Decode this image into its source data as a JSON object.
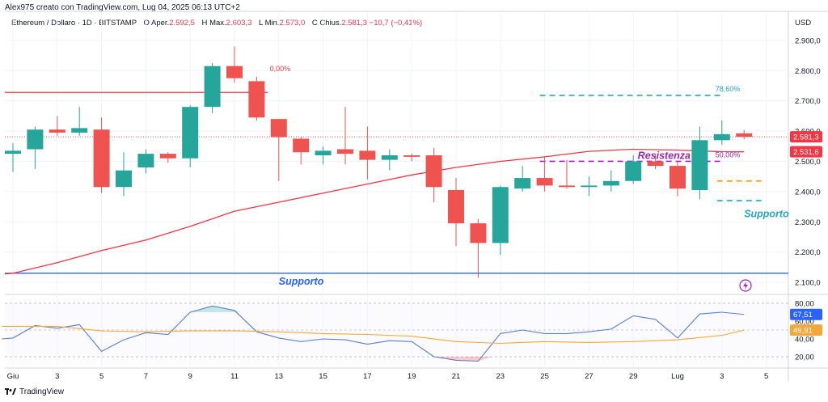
{
  "header": {
    "author_line": "Alex975 creato con TradingView.com, Lug 04, 2025 06:13 UTC+2"
  },
  "legend": {
    "symbol": "Ethereum / Dollaro · 1D · BITSTAMP",
    "open_label": "O",
    "open_text": "Aper.",
    "open_value": "2.592,5",
    "high_label": "H",
    "high_text": "Max.",
    "high_value": "2.603,3",
    "low_label": "L",
    "low_text": "Min.",
    "low_value": "2.573,0",
    "close_label": "C",
    "close_text": "Chius.",
    "close_value": "2.581,3",
    "change_value": "−10,7 (−0,41%)"
  },
  "footer": {
    "brand": "TradingView"
  },
  "chart_data": [
    {
      "type": "candlestick",
      "currency_label": "USD",
      "ylim": [
        2060,
        2980
      ],
      "yticks": [
        {
          "value": 2100,
          "label": "2.100,0"
        },
        {
          "value": 2200,
          "label": "2.200,0"
        },
        {
          "value": 2300,
          "label": "2.300,0"
        },
        {
          "value": 2400,
          "label": "2.400,0"
        },
        {
          "value": 2500,
          "label": "2.500,0"
        },
        {
          "value": 2600,
          "label": "2.600,0"
        },
        {
          "value": 2700,
          "label": "2.700,0"
        },
        {
          "value": 2800,
          "label": "2.800,0"
        },
        {
          "value": 2900,
          "label": "2.900,0"
        }
      ],
      "xticks": [
        {
          "day": 1,
          "label": "Giu"
        },
        {
          "day": 3,
          "label": "3"
        },
        {
          "day": 5,
          "label": "5"
        },
        {
          "day": 7,
          "label": "7"
        },
        {
          "day": 9,
          "label": "9"
        },
        {
          "day": 11,
          "label": "11"
        },
        {
          "day": 13,
          "label": "13"
        },
        {
          "day": 15,
          "label": "15"
        },
        {
          "day": 17,
          "label": "17"
        },
        {
          "day": 19,
          "label": "19"
        },
        {
          "day": 21,
          "label": "21"
        },
        {
          "day": 23,
          "label": "23"
        },
        {
          "day": 25,
          "label": "25"
        },
        {
          "day": 27,
          "label": "27"
        },
        {
          "day": 29,
          "label": "29"
        },
        {
          "day": 31,
          "label": "Lug"
        },
        {
          "day": 33,
          "label": "3"
        },
        {
          "day": 35,
          "label": "5"
        }
      ],
      "candles": [
        {
          "day": 1,
          "open": 2525,
          "high": 2560,
          "low": 2465,
          "close": 2535
        },
        {
          "day": 2,
          "open": 2540,
          "high": 2615,
          "low": 2475,
          "close": 2605
        },
        {
          "day": 3,
          "open": 2605,
          "high": 2650,
          "low": 2585,
          "close": 2595
        },
        {
          "day": 4,
          "open": 2595,
          "high": 2680,
          "low": 2585,
          "close": 2610
        },
        {
          "day": 5,
          "open": 2605,
          "high": 2645,
          "low": 2395,
          "close": 2415
        },
        {
          "day": 6,
          "open": 2415,
          "high": 2530,
          "low": 2385,
          "close": 2470
        },
        {
          "day": 7,
          "open": 2480,
          "high": 2540,
          "low": 2460,
          "close": 2525
        },
        {
          "day": 8,
          "open": 2525,
          "high": 2530,
          "low": 2495,
          "close": 2510
        },
        {
          "day": 9,
          "open": 2510,
          "high": 2685,
          "low": 2480,
          "close": 2680
        },
        {
          "day": 10,
          "open": 2680,
          "high": 2825,
          "low": 2660,
          "close": 2815
        },
        {
          "day": 11,
          "open": 2815,
          "high": 2880,
          "low": 2760,
          "close": 2775
        },
        {
          "day": 12,
          "open": 2765,
          "high": 2780,
          "low": 2635,
          "close": 2645
        },
        {
          "day": 13,
          "open": 2640,
          "high": 2640,
          "low": 2435,
          "close": 2580
        },
        {
          "day": 14,
          "open": 2575,
          "high": 2580,
          "low": 2490,
          "close": 2530
        },
        {
          "day": 15,
          "open": 2520,
          "high": 2550,
          "low": 2490,
          "close": 2535
        },
        {
          "day": 16,
          "open": 2540,
          "high": 2680,
          "low": 2490,
          "close": 2525
        },
        {
          "day": 17,
          "open": 2535,
          "high": 2615,
          "low": 2440,
          "close": 2505
        },
        {
          "day": 18,
          "open": 2505,
          "high": 2540,
          "low": 2470,
          "close": 2520
        },
        {
          "day": 19,
          "open": 2520,
          "high": 2525,
          "low": 2500,
          "close": 2515
        },
        {
          "day": 20,
          "open": 2520,
          "high": 2545,
          "low": 2365,
          "close": 2415
        },
        {
          "day": 21,
          "open": 2405,
          "high": 2445,
          "low": 2220,
          "close": 2295
        },
        {
          "day": 22,
          "open": 2295,
          "high": 2310,
          "low": 2115,
          "close": 2230
        },
        {
          "day": 23,
          "open": 2230,
          "high": 2420,
          "low": 2190,
          "close": 2415
        },
        {
          "day": 24,
          "open": 2410,
          "high": 2485,
          "low": 2400,
          "close": 2445
        },
        {
          "day": 25,
          "open": 2445,
          "high": 2515,
          "low": 2400,
          "close": 2420
        },
        {
          "day": 26,
          "open": 2420,
          "high": 2505,
          "low": 2410,
          "close": 2415
        },
        {
          "day": 27,
          "open": 2415,
          "high": 2450,
          "low": 2385,
          "close": 2420
        },
        {
          "day": 28,
          "open": 2420,
          "high": 2470,
          "low": 2400,
          "close": 2435
        },
        {
          "day": 29,
          "open": 2435,
          "high": 2520,
          "low": 2425,
          "close": 2500
        },
        {
          "day": 30,
          "open": 2500,
          "high": 2525,
          "low": 2475,
          "close": 2485
        },
        {
          "day": 31,
          "open": 2485,
          "high": 2500,
          "low": 2385,
          "close": 2410
        },
        {
          "day": 32,
          "open": 2405,
          "high": 2615,
          "low": 2375,
          "close": 2570
        },
        {
          "day": 33,
          "open": 2570,
          "high": 2635,
          "low": 2555,
          "close": 2590
        },
        {
          "day": 34,
          "open": 2592.5,
          "high": 2603.3,
          "low": 2573.0,
          "close": 2581.3
        }
      ],
      "moving_average": {
        "color": "#f23645",
        "points": [
          {
            "day": 1,
            "value": 2130
          },
          {
            "day": 3,
            "value": 2165
          },
          {
            "day": 5,
            "value": 2205
          },
          {
            "day": 7,
            "value": 2240
          },
          {
            "day": 9,
            "value": 2285
          },
          {
            "day": 11,
            "value": 2335
          },
          {
            "day": 13,
            "value": 2365
          },
          {
            "day": 15,
            "value": 2395
          },
          {
            "day": 17,
            "value": 2425
          },
          {
            "day": 19,
            "value": 2455
          },
          {
            "day": 21,
            "value": 2480
          },
          {
            "day": 23,
            "value": 2500
          },
          {
            "day": 25,
            "value": 2515
          },
          {
            "day": 27,
            "value": 2533
          },
          {
            "day": 29,
            "value": 2540
          },
          {
            "day": 31,
            "value": 2537
          },
          {
            "day": 33,
            "value": 2532
          },
          {
            "day": 34,
            "value": 2531.6
          }
        ]
      },
      "horizontal_lines": [
        {
          "value": 2728,
          "color": "#f23645",
          "style": "solid",
          "from_day": 1,
          "to_day": 12.5
        },
        {
          "value": 2130,
          "color": "#2962ff",
          "style": "solid",
          "from_day": 1,
          "to_day": 36
        }
      ],
      "fib_lines": [
        {
          "value": 2718,
          "color": "#22a7c7",
          "style": "dashed",
          "from_day": 25,
          "to_day": 33,
          "label": "78,60%"
        },
        {
          "value": 2500,
          "color": "#9c27b0",
          "style": "dashed",
          "from_day": 25,
          "to_day": 33,
          "label": "50,00%"
        },
        {
          "value": 2435,
          "color": "#ff9800",
          "style": "dashed",
          "from_day": 33,
          "to_day": 34.8
        },
        {
          "value": 2370,
          "color": "#22a7c7",
          "style": "dashed",
          "from_day": 33,
          "to_day": 34.8
        }
      ],
      "partial_label": {
        "value": 2806,
        "day": 12.3,
        "label": "0,00%",
        "color": "#f23645"
      },
      "annotations": [
        {
          "text": "Resistenza",
          "day": 29.2,
          "value": 2508,
          "color": "#9c27b0"
        },
        {
          "text": "Supporto",
          "day": 34,
          "value": 2315,
          "color": "#22a7c7"
        },
        {
          "text": "Supporto",
          "day": 13,
          "value": 2092,
          "color": "#2962ff"
        }
      ],
      "price_badges": [
        {
          "value": 2581.3,
          "label": "2.581,3",
          "color": "#f23645"
        },
        {
          "value": 2531.6,
          "label": "2.531,6",
          "color": "#f23645"
        }
      ]
    },
    {
      "type": "line",
      "ylim": [
        10,
        90
      ],
      "yticks": [
        {
          "value": 20,
          "label": "20,00"
        },
        {
          "value": 40,
          "label": "40,00"
        },
        {
          "value": 60,
          "label": "60,00"
        },
        {
          "value": 80,
          "label": "80,00"
        }
      ],
      "bands": [
        20,
        50,
        80
      ],
      "series": [
        {
          "color": "#5b7fd6",
          "points": [
            [
              0.5,
              40
            ],
            [
              1,
              41
            ],
            [
              2,
              55
            ],
            [
              3,
              52
            ],
            [
              4,
              56
            ],
            [
              5,
              26
            ],
            [
              6,
              39
            ],
            [
              7,
              47
            ],
            [
              8,
              45
            ],
            [
              9,
              70
            ],
            [
              10,
              77
            ],
            [
              11,
              72
            ],
            [
              12,
              48
            ],
            [
              13,
              41
            ],
            [
              14,
              37
            ],
            [
              15,
              40
            ],
            [
              16,
              39
            ],
            [
              17,
              34
            ],
            [
              18,
              38
            ],
            [
              19,
              37
            ],
            [
              20,
              20
            ],
            [
              21,
              16
            ],
            [
              22,
              15
            ],
            [
              23,
              46
            ],
            [
              24,
              50
            ],
            [
              25,
              46
            ],
            [
              26,
              46
            ],
            [
              27,
              48
            ],
            [
              28,
              51
            ],
            [
              29,
              66
            ],
            [
              30,
              62
            ],
            [
              31,
              41
            ],
            [
              32,
              68
            ],
            [
              33,
              70
            ],
            [
              34,
              67.51
            ]
          ]
        },
        {
          "color": "#f5a83a",
          "points": [
            [
              0.5,
              54
            ],
            [
              3,
              54
            ],
            [
              5,
              49
            ],
            [
              7,
              48
            ],
            [
              9,
              49
            ],
            [
              11,
              49
            ],
            [
              13,
              48
            ],
            [
              15,
              46
            ],
            [
              17,
              45
            ],
            [
              19,
              43
            ],
            [
              21,
              37
            ],
            [
              23,
              35
            ],
            [
              25,
              37
            ],
            [
              27,
              36
            ],
            [
              29,
              37
            ],
            [
              31,
              39
            ],
            [
              33,
              44
            ],
            [
              34,
              49.91
            ]
          ]
        }
      ],
      "price_badges": [
        {
          "value": 67.51,
          "label": "67,51",
          "color": "#2962ff"
        },
        {
          "value": 49.91,
          "label": "49,91",
          "color": "#f5a83a"
        }
      ]
    }
  ]
}
